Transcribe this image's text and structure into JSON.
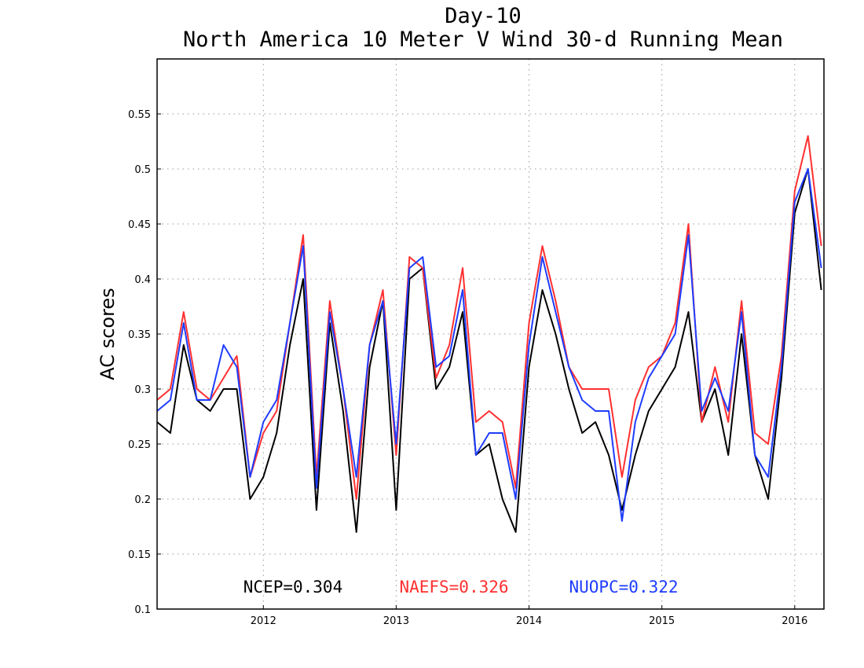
{
  "chart_data": {
    "type": "line",
    "title": "Day-10",
    "subtitle": "North America 10 Meter V Wind 30-d Running Mean",
    "xlabel": "",
    "ylabel": "AC scores",
    "xlim": [
      2011.2,
      2016.22
    ],
    "ylim": [
      0.1,
      0.6
    ],
    "yticks": [
      "0.1",
      "0.15",
      "0.2",
      "0.25",
      "0.3",
      "0.35",
      "0.4",
      "0.45",
      "0.5",
      "0.55"
    ],
    "xticks": [
      "2012",
      "2013",
      "2014",
      "2015",
      "2016"
    ],
    "grid": true,
    "legend_location": "bottom-center",
    "legend": [
      {
        "name": "NCEP=0.304",
        "color": "#000000"
      },
      {
        "name": "NAEFS=0.326",
        "color": "#ff3030"
      },
      {
        "name": "NUOPC=0.322",
        "color": "#1e3cff"
      }
    ],
    "x": [
      2011.2,
      2011.3,
      2011.4,
      2011.5,
      2011.6,
      2011.7,
      2011.8,
      2011.9,
      2012.0,
      2012.1,
      2012.2,
      2012.3,
      2012.4,
      2012.5,
      2012.6,
      2012.7,
      2012.8,
      2012.9,
      2013.0,
      2013.1,
      2013.2,
      2013.3,
      2013.4,
      2013.5,
      2013.6,
      2013.7,
      2013.8,
      2013.9,
      2014.0,
      2014.1,
      2014.2,
      2014.3,
      2014.4,
      2014.5,
      2014.6,
      2014.7,
      2014.8,
      2014.9,
      2015.0,
      2015.1,
      2015.2,
      2015.3,
      2015.4,
      2015.5,
      2015.6,
      2015.7,
      2015.8,
      2015.9,
      2016.0,
      2016.1,
      2016.2
    ],
    "series": [
      {
        "name": "NCEP",
        "color": "#000000",
        "values": [
          0.27,
          0.26,
          0.34,
          0.29,
          0.28,
          0.3,
          0.3,
          0.2,
          0.22,
          0.26,
          0.34,
          0.4,
          0.19,
          0.36,
          0.28,
          0.17,
          0.32,
          0.38,
          0.19,
          0.4,
          0.41,
          0.3,
          0.32,
          0.37,
          0.24,
          0.25,
          0.2,
          0.17,
          0.32,
          0.39,
          0.35,
          0.3,
          0.26,
          0.27,
          0.24,
          0.19,
          0.24,
          0.28,
          0.3,
          0.32,
          0.37,
          0.27,
          0.3,
          0.24,
          0.35,
          0.24,
          0.2,
          0.31,
          0.46,
          0.5,
          0.39
        ]
      },
      {
        "name": "NAEFS",
        "color": "#ff3030",
        "values": [
          0.29,
          0.3,
          0.37,
          0.3,
          0.29,
          0.31,
          0.33,
          0.22,
          0.26,
          0.28,
          0.36,
          0.44,
          0.22,
          0.38,
          0.3,
          0.2,
          0.34,
          0.39,
          0.24,
          0.42,
          0.41,
          0.31,
          0.34,
          0.41,
          0.27,
          0.28,
          0.27,
          0.21,
          0.36,
          0.43,
          0.38,
          0.32,
          0.3,
          0.3,
          0.3,
          0.22,
          0.29,
          0.32,
          0.33,
          0.36,
          0.45,
          0.27,
          0.32,
          0.27,
          0.38,
          0.26,
          0.25,
          0.33,
          0.48,
          0.53,
          0.43
        ]
      },
      {
        "name": "NUOPC",
        "color": "#1e3cff",
        "values": [
          0.28,
          0.29,
          0.36,
          0.29,
          0.29,
          0.34,
          0.32,
          0.22,
          0.27,
          0.29,
          0.36,
          0.43,
          0.21,
          0.37,
          0.3,
          0.22,
          0.34,
          0.38,
          0.25,
          0.41,
          0.42,
          0.32,
          0.33,
          0.39,
          0.24,
          0.26,
          0.26,
          0.2,
          0.34,
          0.42,
          0.37,
          0.32,
          0.29,
          0.28,
          0.28,
          0.18,
          0.27,
          0.31,
          0.33,
          0.35,
          0.44,
          0.28,
          0.31,
          0.28,
          0.37,
          0.24,
          0.22,
          0.32,
          0.47,
          0.5,
          0.41
        ]
      }
    ]
  }
}
